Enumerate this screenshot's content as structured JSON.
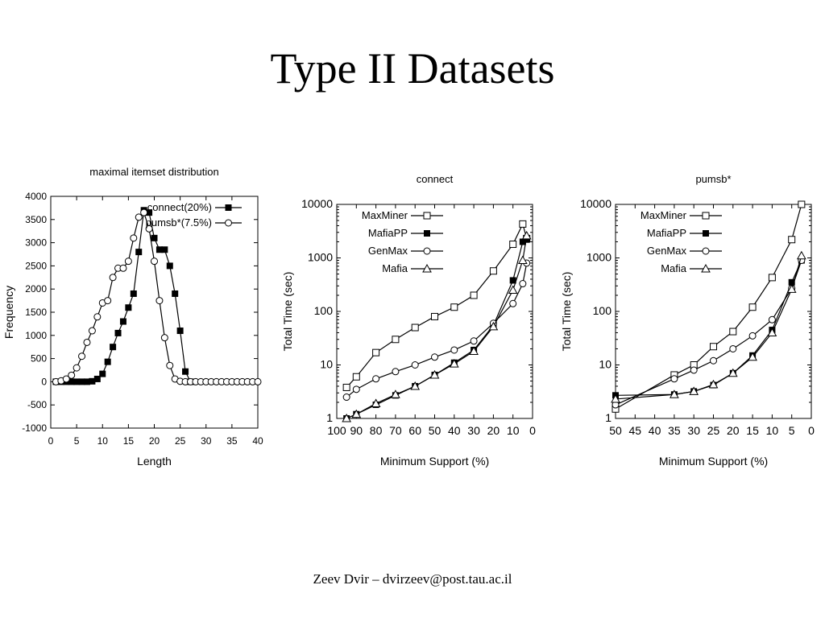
{
  "slide": {
    "title": "Type II Datasets",
    "footer": "Zeev Dvir – dvirzeev@post.tau.ac.il"
  },
  "chart_data": [
    {
      "id": "dist",
      "type": "line",
      "title": "maximal itemset distribution",
      "xlabel": "Length",
      "ylabel": "Frequency",
      "xlim": [
        0,
        40
      ],
      "ylim": [
        -1000,
        4000
      ],
      "xticks": [
        0,
        5,
        10,
        15,
        20,
        25,
        30,
        35,
        40
      ],
      "yticks": [
        -1000,
        -500,
        0,
        500,
        1000,
        1500,
        2000,
        2500,
        3000,
        3500,
        4000
      ],
      "legend_position": "top-right",
      "series": [
        {
          "name": "connect(20%)",
          "marker": "filled-square",
          "x": [
            1,
            2,
            3,
            4,
            5,
            6,
            7,
            8,
            9,
            10,
            11,
            12,
            13,
            14,
            15,
            16,
            17,
            18,
            19,
            20,
            21,
            22,
            23,
            24,
            25,
            26,
            27
          ],
          "y": [
            0,
            0,
            0,
            0,
            0,
            0,
            0,
            10,
            60,
            170,
            430,
            750,
            1050,
            1300,
            1600,
            1900,
            2800,
            3700,
            3650,
            3100,
            2850,
            2850,
            2500,
            1900,
            1100,
            220,
            0
          ]
        },
        {
          "name": "pumsb*(7.5%)",
          "marker": "open-circle",
          "x": [
            1,
            2,
            3,
            4,
            5,
            6,
            7,
            8,
            9,
            10,
            11,
            12,
            13,
            14,
            15,
            16,
            17,
            18,
            19,
            20,
            21,
            22,
            23,
            24,
            25,
            26,
            27,
            28,
            29,
            30,
            31,
            32,
            33,
            34,
            35,
            36,
            37,
            38,
            39,
            40
          ],
          "y": [
            0,
            20,
            60,
            140,
            300,
            550,
            850,
            1100,
            1400,
            1700,
            1750,
            2250,
            2450,
            2450,
            2600,
            3100,
            3550,
            3650,
            3300,
            2600,
            1750,
            950,
            350,
            60,
            10,
            0,
            0,
            0,
            0,
            0,
            0,
            0,
            0,
            0,
            0,
            0,
            0,
            0,
            0,
            0
          ]
        }
      ]
    },
    {
      "id": "connect",
      "type": "line",
      "title": "connect",
      "xlabel": "Minimum Support (%)",
      "ylabel": "Total Time (sec)",
      "xlim": [
        100,
        0
      ],
      "ylim": [
        1,
        10000
      ],
      "yscale": "log",
      "xticks": [
        100,
        90,
        80,
        70,
        60,
        50,
        40,
        30,
        20,
        10,
        0
      ],
      "yticks": [
        1,
        10,
        100,
        1000,
        10000
      ],
      "legend_position": "top-left",
      "series": [
        {
          "name": "MaxMiner",
          "marker": "open-square",
          "x": [
            95,
            90,
            80,
            70,
            60,
            50,
            40,
            30,
            20,
            10,
            5,
            3
          ],
          "y": [
            3.8,
            6,
            17,
            30,
            50,
            80,
            120,
            200,
            570,
            1800,
            4300,
            2300
          ]
        },
        {
          "name": "MafiaPP",
          "marker": "filled-square",
          "x": [
            95,
            90,
            80,
            70,
            60,
            50,
            40,
            30,
            20,
            10,
            5,
            3
          ],
          "y": [
            1,
            1.2,
            1.8,
            2.7,
            4,
            6.5,
            11,
            19,
            55,
            380,
            2000,
            2200
          ]
        },
        {
          "name": "GenMax",
          "marker": "open-circle",
          "x": [
            95,
            90,
            80,
            70,
            60,
            50,
            40,
            30,
            20,
            10,
            5,
            3
          ],
          "y": [
            2.5,
            3.5,
            5.5,
            7.5,
            10,
            14,
            19,
            28,
            60,
            140,
            330,
            800
          ]
        },
        {
          "name": "Mafia",
          "marker": "open-triangle",
          "x": [
            95,
            90,
            80,
            70,
            60,
            50,
            40,
            30,
            20,
            10,
            5,
            3
          ],
          "y": [
            1,
            1.2,
            1.9,
            2.8,
            4,
            6.5,
            10.5,
            18,
            52,
            250,
            900,
            2600
          ]
        }
      ]
    },
    {
      "id": "pumsb",
      "type": "line",
      "title": "pumsb*",
      "xlabel": "Minimum Support (%)",
      "ylabel": "Total Time (sec)",
      "xlim": [
        50,
        0
      ],
      "ylim": [
        1,
        10000
      ],
      "yscale": "log",
      "xticks": [
        50,
        45,
        40,
        35,
        30,
        25,
        20,
        15,
        10,
        5,
        0
      ],
      "yticks": [
        1,
        10,
        100,
        1000,
        10000
      ],
      "legend_position": "top-left",
      "series": [
        {
          "name": "MaxMiner",
          "marker": "open-square",
          "x": [
            50,
            35,
            30,
            25,
            20,
            15,
            10,
            5,
            2.5
          ],
          "y": [
            1.5,
            6.5,
            10,
            22,
            42,
            120,
            430,
            2200,
            10000
          ]
        },
        {
          "name": "MafiaPP",
          "marker": "filled-square",
          "x": [
            50,
            35,
            30,
            25,
            20,
            15,
            10,
            5,
            2.5
          ],
          "y": [
            2.7,
            2.8,
            3.2,
            4.2,
            7,
            15,
            45,
            350,
            900
          ]
        },
        {
          "name": "GenMax",
          "marker": "open-circle",
          "x": [
            50,
            35,
            30,
            25,
            20,
            15,
            10,
            5,
            2.5
          ],
          "y": [
            1.8,
            5.5,
            8,
            12,
            20,
            35,
            70,
            270,
            900
          ]
        },
        {
          "name": "Mafia",
          "marker": "open-triangle",
          "x": [
            50,
            35,
            30,
            25,
            20,
            15,
            10,
            5,
            2.5
          ],
          "y": [
            2.3,
            2.8,
            3.2,
            4.3,
            7,
            14,
            40,
            260,
            1100
          ]
        }
      ]
    }
  ]
}
